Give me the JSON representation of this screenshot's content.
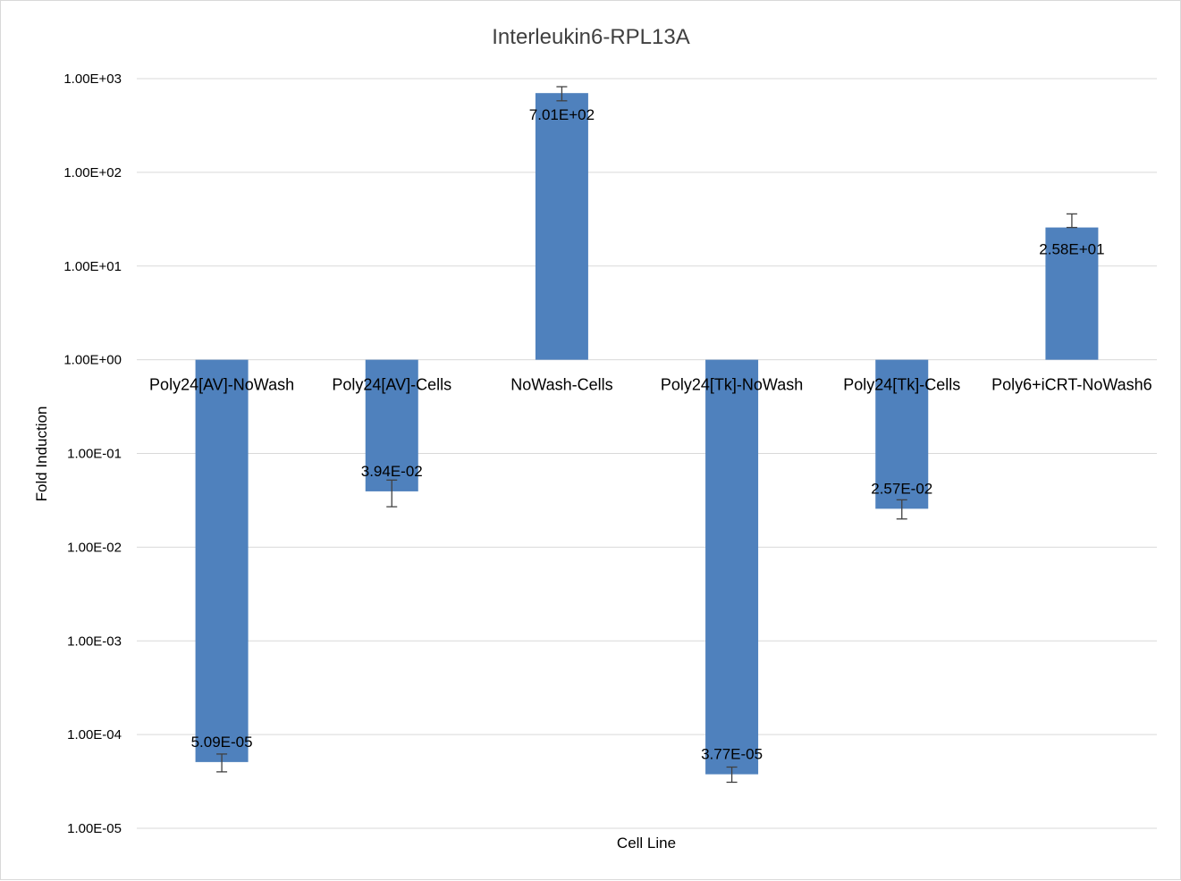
{
  "chart_data": {
    "type": "bar",
    "title": "Interleukin6-RPL13A",
    "xlabel": "Cell Line",
    "ylabel": "Fold Induction",
    "y_scale": "log",
    "ylim": [
      1e-05,
      1000
    ],
    "y_ticks": [
      1000,
      100,
      10,
      1,
      0.1,
      0.01,
      0.001,
      0.0001,
      1e-05
    ],
    "y_tick_labels": [
      "1.00E+03",
      "1.00E+02",
      "1.00E+01",
      "1.00E+00",
      "1.00E-01",
      "1.00E-02",
      "1.00E-03",
      "1.00E-04",
      "1.00E-05"
    ],
    "grid": true,
    "legend": "none",
    "bar_color": "#4f81bd",
    "categories": [
      "Poly24[AV]-NoWash",
      "Poly24[AV]-Cells",
      "NoWash-Cells",
      "Poly24[Tk]-NoWash",
      "Poly24[Tk]-Cells",
      "Poly6+iCRT-NoWash6"
    ],
    "values": [
      5.09e-05,
      0.0394,
      701,
      3.77e-05,
      0.0257,
      25.8
    ],
    "value_labels": [
      "5.09E-05",
      "3.94E-02",
      "7.01E+02",
      "3.77E-05",
      "2.57E-02",
      "2.58E+01"
    ],
    "error_low": [
      4e-05,
      0.027,
      580,
      3.1e-05,
      0.02,
      25.8
    ],
    "error_high": [
      6.2e-05,
      0.052,
      820,
      4.5e-05,
      0.032,
      36
    ]
  }
}
